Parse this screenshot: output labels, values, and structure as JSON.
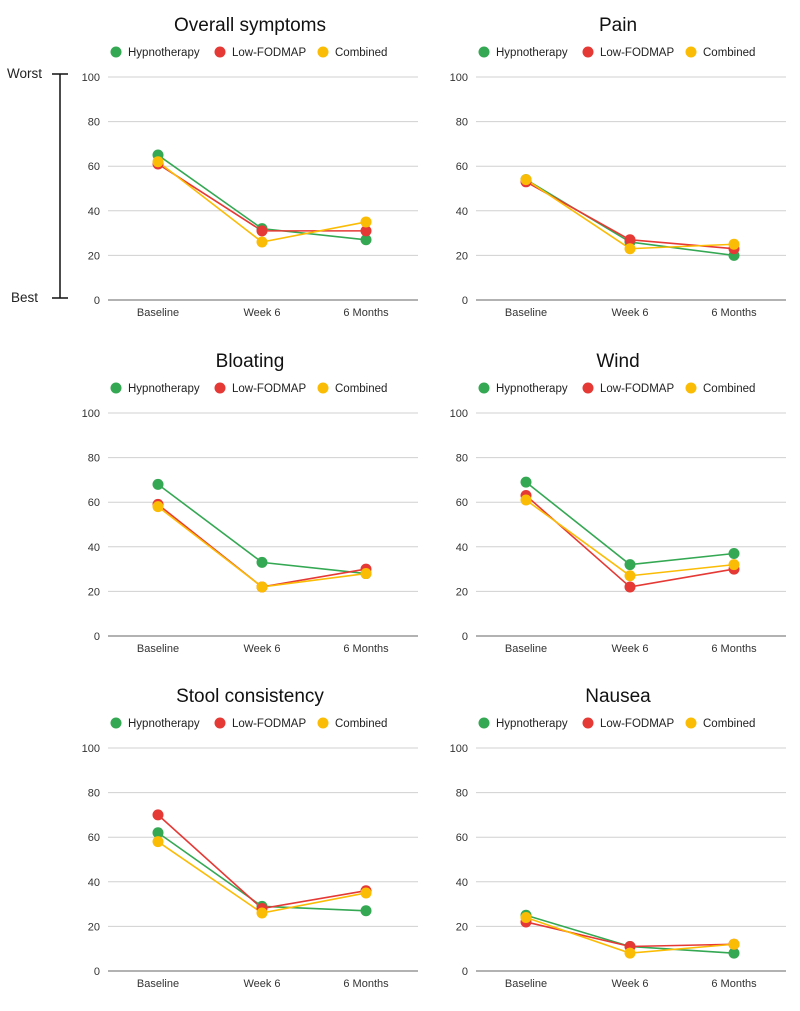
{
  "colors": {
    "hypnotherapy": "#34a853",
    "low_fodmap": "#e53935",
    "combined": "#fbbc05",
    "gridline": "#d0d0d0",
    "axis": "#666666"
  },
  "scale": {
    "top_label": "Worst",
    "bottom_label": "Best"
  },
  "chart_data": [
    {
      "type": "line",
      "title": "Overall symptoms",
      "categories": [
        "Baseline",
        "Week 6",
        "6 Months"
      ],
      "ylim": [
        0,
        100
      ],
      "yticks": [
        0,
        20,
        40,
        60,
        80,
        100
      ],
      "ytick_labels": [
        "0",
        "20",
        "40",
        "60",
        "80",
        "100"
      ],
      "series": [
        {
          "name": "Hypnotherapy",
          "values": [
            65,
            32,
            27
          ]
        },
        {
          "name": "Low-FODMAP",
          "values": [
            61,
            31,
            31
          ]
        },
        {
          "name": "Combined",
          "values": [
            62,
            26,
            35
          ]
        }
      ]
    },
    {
      "type": "line",
      "title": "Pain",
      "categories": [
        "Baseline",
        "Week 6",
        "6 Months"
      ],
      "ylim": [
        0,
        100
      ],
      "yticks": [
        0,
        20,
        40,
        60,
        80,
        100
      ],
      "ytick_labels": [
        "0",
        "20",
        "40",
        "60",
        "80",
        "100"
      ],
      "series": [
        {
          "name": "Hypnotherapy",
          "values": [
            54,
            26,
            20
          ]
        },
        {
          "name": "Low-FODMAP",
          "values": [
            53,
            27,
            23
          ]
        },
        {
          "name": "Combined",
          "values": [
            54,
            23,
            25
          ]
        }
      ]
    },
    {
      "type": "line",
      "title": "Bloating",
      "categories": [
        "Baseline",
        "Week 6",
        "6 Months"
      ],
      "ylim": [
        0,
        100
      ],
      "yticks": [
        0,
        20,
        40,
        60,
        80,
        100
      ],
      "ytick_labels": [
        "0",
        "20",
        "40",
        "60",
        "80",
        "100"
      ],
      "series": [
        {
          "name": "Hypnotherapy",
          "values": [
            68,
            33,
            28
          ]
        },
        {
          "name": "Low-FODMAP",
          "values": [
            59,
            22,
            30
          ]
        },
        {
          "name": "Combined",
          "values": [
            58,
            22,
            28
          ]
        }
      ]
    },
    {
      "type": "line",
      "title": "Wind",
      "categories": [
        "Baseline",
        "Week 6",
        "6 Months"
      ],
      "ylim": [
        0,
        100
      ],
      "yticks": [
        0,
        20,
        40,
        60,
        80,
        100
      ],
      "ytick_labels": [
        "0",
        "20",
        "40",
        "60",
        "80",
        "100"
      ],
      "series": [
        {
          "name": "Hypnotherapy",
          "values": [
            69,
            32,
            37
          ]
        },
        {
          "name": "Low-FODMAP",
          "values": [
            63,
            22,
            30
          ]
        },
        {
          "name": "Combined",
          "values": [
            61,
            27,
            32
          ]
        }
      ]
    },
    {
      "type": "line",
      "title": "Stool consistency",
      "categories": [
        "Baseline",
        "Week 6",
        "6 Months"
      ],
      "ylim": [
        0,
        100
      ],
      "yticks": [
        0,
        20,
        40,
        60,
        80,
        100
      ],
      "ytick_labels": [
        "0",
        "20",
        "40",
        "60",
        "80",
        "100"
      ],
      "series": [
        {
          "name": "Hypnotherapy",
          "values": [
            62,
            29,
            27
          ]
        },
        {
          "name": "Low-FODMAP",
          "values": [
            70,
            28,
            36
          ]
        },
        {
          "name": "Combined",
          "values": [
            58,
            26,
            35
          ]
        }
      ]
    },
    {
      "type": "line",
      "title": "Nausea",
      "categories": [
        "Baseline",
        "Week 6",
        "6 Months"
      ],
      "ylim": [
        0,
        100
      ],
      "yticks": [
        0,
        20,
        40,
        60,
        80,
        100
      ],
      "ytick_labels": [
        "0",
        "20",
        "40",
        "60",
        "80",
        "100"
      ],
      "series": [
        {
          "name": "Hypnotherapy",
          "values": [
            25,
            11,
            8
          ]
        },
        {
          "name": "Low-FODMAP",
          "values": [
            22,
            11,
            12
          ]
        },
        {
          "name": "Combined",
          "values": [
            24,
            8,
            12
          ]
        }
      ]
    }
  ]
}
